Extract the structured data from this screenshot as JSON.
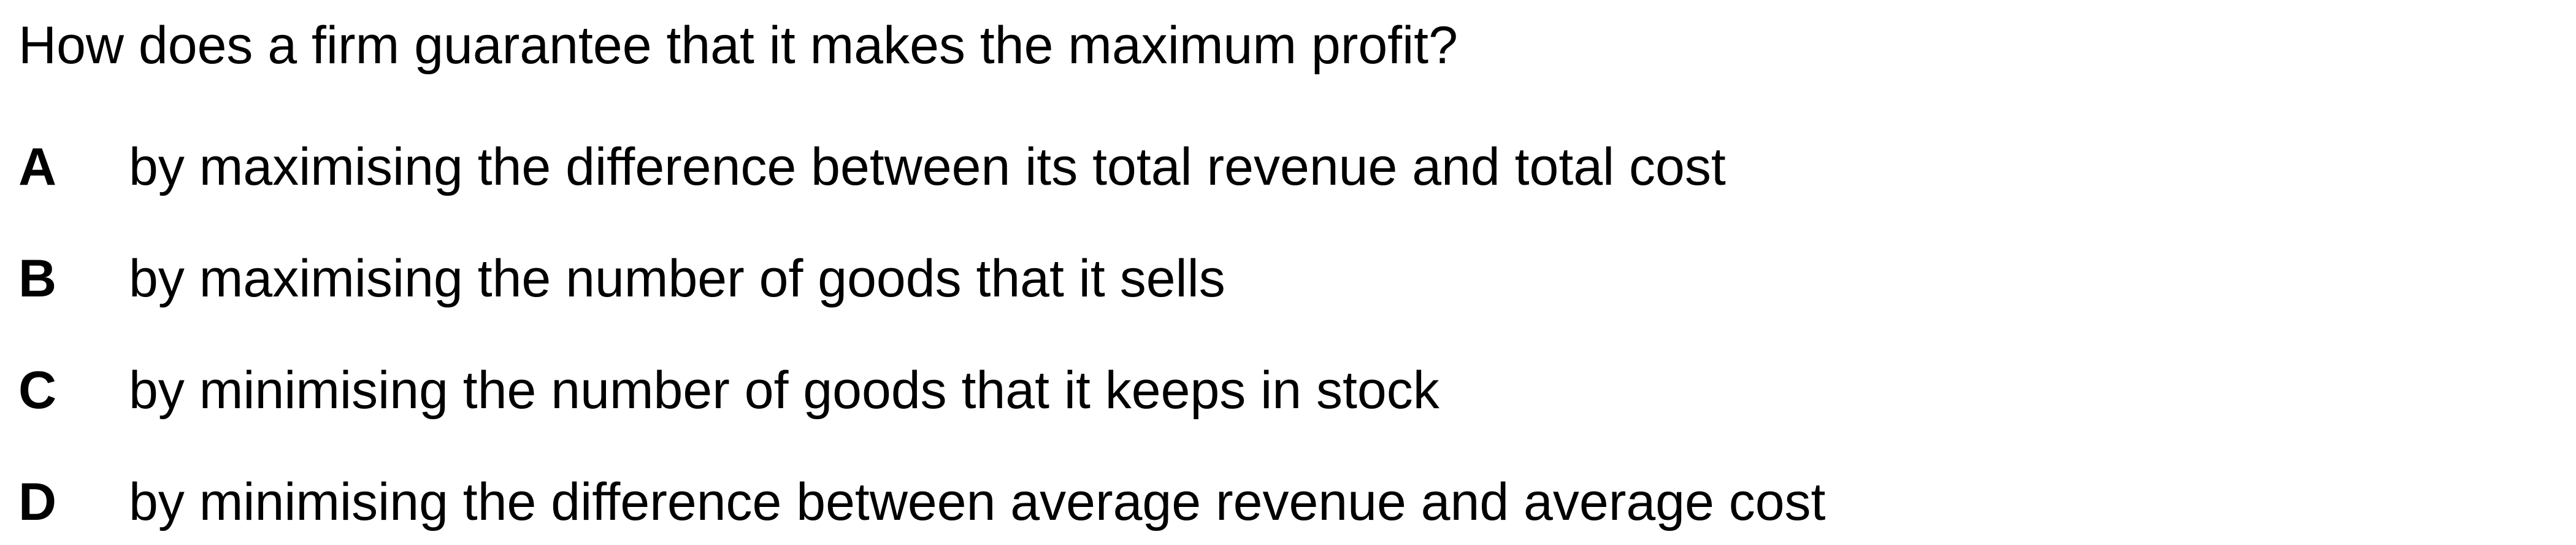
{
  "question": {
    "text": "How does a firm guarantee that it makes the maximum profit?"
  },
  "options": [
    {
      "letter": "A",
      "text": "by maximising the difference between its total revenue and total cost"
    },
    {
      "letter": "B",
      "text": "by maximising the number of goods that it sells"
    },
    {
      "letter": "C",
      "text": "by minimising the number of goods that it keeps in stock"
    },
    {
      "letter": "D",
      "text": "by minimising the difference between average revenue and average cost"
    }
  ]
}
